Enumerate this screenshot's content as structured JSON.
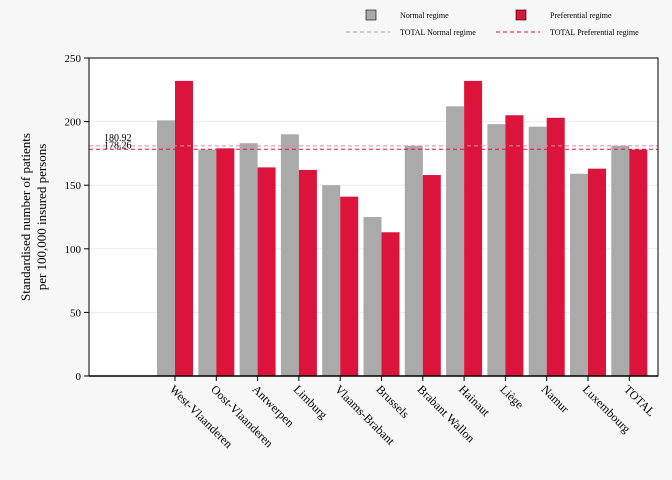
{
  "chart_data": {
    "type": "bar",
    "categories": [
      "West-Vlaanderen",
      "Oost-Vlaanderen",
      "Antwerpen",
      "Limburg",
      "Vlaams-Brabant",
      "Brussels",
      "Brabant Wallon",
      "Hainaut",
      "Liège",
      "Namur",
      "Luxembourg",
      "TOTAL"
    ],
    "series": [
      {
        "name": "Normal regime",
        "color": "#aaaaaa",
        "values": [
          201,
          178,
          183,
          190,
          150,
          125,
          181,
          212,
          198,
          196,
          159,
          181
        ]
      },
      {
        "name": "Preferential regime",
        "color": "#dc143c",
        "values": [
          232,
          179,
          164,
          162,
          141,
          113,
          158,
          232,
          205,
          203,
          163,
          178
        ]
      }
    ],
    "reference_lines": [
      {
        "name": "TOTAL Normal regime",
        "value": 180.92,
        "label": "180.92",
        "color": "#dc8c9c",
        "style": "dashed"
      },
      {
        "name": "TOTAL Preferential regime",
        "value": 178.26,
        "label": "178.26",
        "color": "#dc143c",
        "style": "dashed"
      }
    ],
    "ylabel": [
      "Standardised number of patients",
      "per 100,000 insured persons"
    ],
    "ylim": [
      0,
      250
    ],
    "yticks": [
      0,
      50,
      100,
      150,
      200,
      250
    ],
    "legend": "top"
  }
}
